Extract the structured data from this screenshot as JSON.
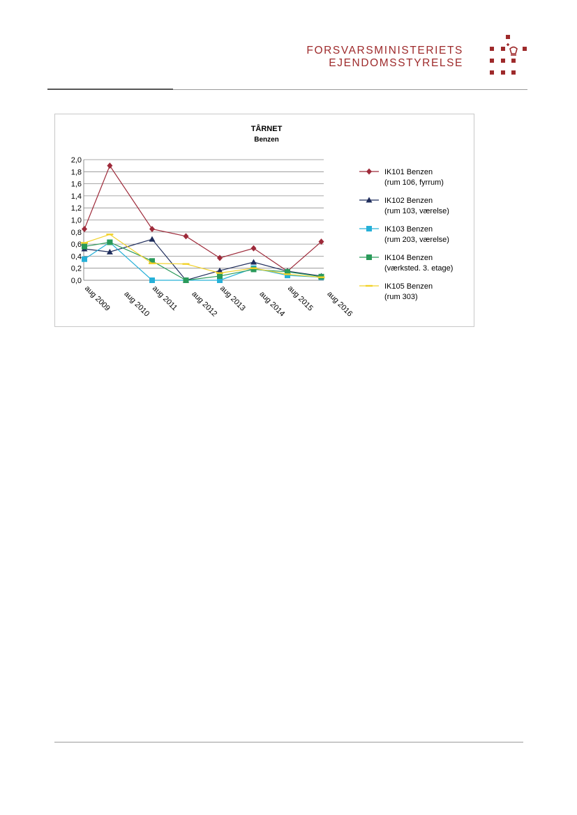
{
  "header": {
    "org_line1": "FORSVARSMINISTERIETS",
    "org_line2": "EJENDOMSSTYRELSE",
    "brand_color": "#9e2a2b",
    "logo_icon": "crown-icon"
  },
  "chart_data": {
    "type": "line",
    "title": "TÅRNET",
    "subtitle": "Benzen",
    "xlabel": "",
    "ylabel": "",
    "categories": [
      "aug 2009",
      "aug 2010",
      "aug 2011",
      "aug 2012",
      "aug 2013",
      "aug 2014",
      "aug 2015",
      "aug 2016"
    ],
    "ylim": [
      0,
      2.0
    ],
    "yticks": [
      "0,0",
      "0,2",
      "0,4",
      "0,6",
      "0,8",
      "1,0",
      "1,2",
      "1,4",
      "1,6",
      "1,8",
      "2,0"
    ],
    "grid": true,
    "legend_position": "right",
    "series": [
      {
        "name": "IK101 Benzen",
        "sublabel": "(rum 106, fyrrum)",
        "color": "#9e2a3a",
        "marker": "diamond",
        "points": [
          [
            0,
            0.85
          ],
          [
            0.75,
            1.9
          ],
          [
            2,
            0.85
          ],
          [
            3,
            0.73
          ],
          [
            4,
            0.37
          ],
          [
            5,
            0.53
          ],
          [
            6,
            0.15
          ],
          [
            7,
            0.64
          ]
        ]
      },
      {
        "name": "IK102 Benzen",
        "sublabel": "(rum 103, værelse)",
        "color": "#1f2d5c",
        "marker": "triangle",
        "points": [
          [
            0,
            0.52
          ],
          [
            0.75,
            0.47
          ],
          [
            2,
            0.68
          ],
          [
            3,
            0.0
          ],
          [
            4,
            0.16
          ],
          [
            5,
            0.3
          ],
          [
            6,
            0.15
          ],
          [
            7,
            0.07
          ]
        ]
      },
      {
        "name": "IK103 Benzen",
        "sublabel": "(rum 203, værelse)",
        "color": "#26b0d8",
        "marker": "square",
        "points": [
          [
            0,
            0.35
          ],
          [
            0.75,
            0.63
          ],
          [
            2,
            0.0
          ],
          [
            3,
            0.0
          ],
          [
            4,
            0.0
          ],
          [
            5,
            0.2
          ],
          [
            6,
            0.08
          ],
          [
            7,
            0.05
          ]
        ]
      },
      {
        "name": "IK104 Benzen",
        "sublabel": "(værksted. 3. etage)",
        "color": "#2a9a5a",
        "marker": "square",
        "points": [
          [
            0,
            0.56
          ],
          [
            0.75,
            0.63
          ],
          [
            2,
            0.32
          ],
          [
            3,
            0.0
          ],
          [
            4,
            0.07
          ],
          [
            5,
            0.18
          ],
          [
            6,
            0.14
          ],
          [
            7,
            0.06
          ]
        ]
      },
      {
        "name": "IK105 Benzen",
        "sublabel": "(rum 303)",
        "color": "#f2d22a",
        "marker": "dash",
        "points": [
          [
            0,
            0.62
          ],
          [
            0.75,
            0.76
          ],
          [
            2,
            0.28
          ],
          [
            3,
            0.27
          ],
          [
            4,
            0.12
          ],
          [
            5,
            0.2
          ],
          [
            6,
            0.1
          ],
          [
            7,
            0.05
          ]
        ]
      }
    ]
  }
}
